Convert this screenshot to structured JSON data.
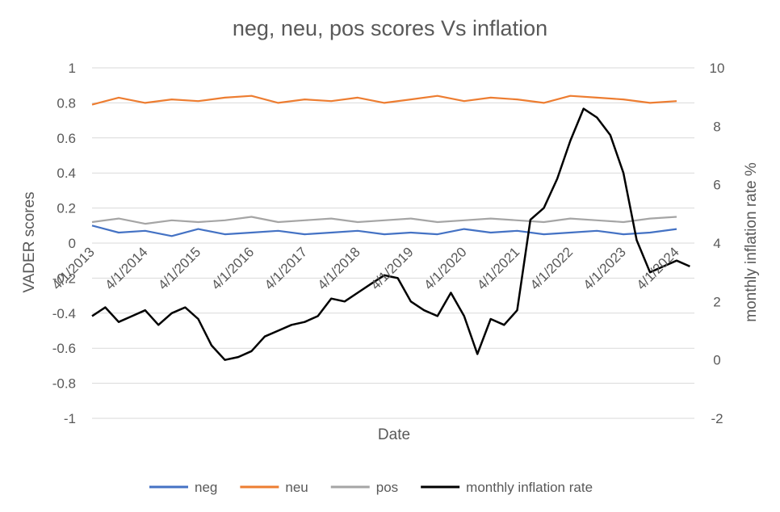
{
  "chart_data": {
    "type": "line",
    "title": "neg, neu, pos scores Vs inflation",
    "xlabel": "Date",
    "ylabel": "VADER scores",
    "y2label": "monthly inflation rate %",
    "ylim": [
      -1,
      1
    ],
    "y2lim": [
      -2,
      10
    ],
    "y_ticks": [
      "1",
      "0.8",
      "0.6",
      "0.4",
      "0.2",
      "0",
      "-0.2",
      "-0.4",
      "-0.6",
      "-0.8",
      "-1"
    ],
    "y2_ticks": [
      "10",
      "8",
      "6",
      "4",
      "2",
      "0",
      "-2"
    ],
    "x_date_labels": [
      "4/1/2013",
      "4/1/2014",
      "4/1/2015",
      "4/1/2016",
      "4/1/2017",
      "4/1/2018",
      "4/1/2019",
      "4/1/2020",
      "4/1/2021",
      "4/1/2022",
      "4/1/2023",
      "4/1/2024"
    ],
    "grid": true,
    "legend_position": "bottom",
    "colors": {
      "neg": "#4472c4",
      "neu": "#ed7d31",
      "pos": "#a5a5a5",
      "inflation": "#000000"
    },
    "series": [
      {
        "name": "neg",
        "axis": "left",
        "x": [
          "2013-04",
          "2013-10",
          "2014-04",
          "2014-10",
          "2015-04",
          "2015-10",
          "2016-04",
          "2016-10",
          "2017-04",
          "2017-10",
          "2018-04",
          "2018-10",
          "2019-04",
          "2019-10",
          "2020-04",
          "2020-10",
          "2021-04",
          "2021-10",
          "2022-04",
          "2022-10",
          "2023-04",
          "2023-10",
          "2024-04"
        ],
        "y": [
          0.1,
          0.06,
          0.07,
          0.04,
          0.08,
          0.05,
          0.06,
          0.07,
          0.05,
          0.06,
          0.07,
          0.05,
          0.06,
          0.05,
          0.08,
          0.06,
          0.07,
          0.05,
          0.06,
          0.07,
          0.05,
          0.06,
          0.08
        ]
      },
      {
        "name": "neu",
        "axis": "left",
        "x": [
          "2013-04",
          "2013-10",
          "2014-04",
          "2014-10",
          "2015-04",
          "2015-10",
          "2016-04",
          "2016-10",
          "2017-04",
          "2017-10",
          "2018-04",
          "2018-10",
          "2019-04",
          "2019-10",
          "2020-04",
          "2020-10",
          "2021-04",
          "2021-10",
          "2022-04",
          "2022-10",
          "2023-04",
          "2023-10",
          "2024-04"
        ],
        "y": [
          0.79,
          0.83,
          0.8,
          0.82,
          0.81,
          0.83,
          0.84,
          0.8,
          0.82,
          0.81,
          0.83,
          0.8,
          0.82,
          0.84,
          0.81,
          0.83,
          0.82,
          0.8,
          0.84,
          0.83,
          0.82,
          0.8,
          0.81
        ]
      },
      {
        "name": "pos",
        "axis": "left",
        "x": [
          "2013-04",
          "2013-10",
          "2014-04",
          "2014-10",
          "2015-04",
          "2015-10",
          "2016-04",
          "2016-10",
          "2017-04",
          "2017-10",
          "2018-04",
          "2018-10",
          "2019-04",
          "2019-10",
          "2020-04",
          "2020-10",
          "2021-04",
          "2021-10",
          "2022-04",
          "2022-10",
          "2023-04",
          "2023-10",
          "2024-04"
        ],
        "y": [
          0.12,
          0.14,
          0.11,
          0.13,
          0.12,
          0.13,
          0.15,
          0.12,
          0.13,
          0.14,
          0.12,
          0.13,
          0.14,
          0.12,
          0.13,
          0.14,
          0.13,
          0.12,
          0.14,
          0.13,
          0.12,
          0.14,
          0.15
        ]
      },
      {
        "name": "monthly inflation rate",
        "axis": "right",
        "x": [
          "2013-04",
          "2013-07",
          "2013-10",
          "2014-01",
          "2014-04",
          "2014-07",
          "2014-10",
          "2015-01",
          "2015-04",
          "2015-07",
          "2015-10",
          "2016-01",
          "2016-04",
          "2016-07",
          "2016-10",
          "2017-01",
          "2017-04",
          "2017-07",
          "2017-10",
          "2018-01",
          "2018-04",
          "2018-07",
          "2018-10",
          "2019-01",
          "2019-04",
          "2019-07",
          "2019-10",
          "2020-01",
          "2020-04",
          "2020-07",
          "2020-10",
          "2021-01",
          "2021-04",
          "2021-07",
          "2021-10",
          "2022-01",
          "2022-04",
          "2022-07",
          "2022-10",
          "2023-01",
          "2023-04",
          "2023-07",
          "2023-10",
          "2024-01",
          "2024-04",
          "2024-07"
        ],
        "y": [
          1.5,
          1.8,
          1.3,
          1.5,
          1.7,
          1.2,
          1.6,
          1.8,
          1.4,
          0.5,
          0.0,
          0.1,
          0.3,
          0.8,
          1.0,
          1.2,
          1.3,
          1.5,
          2.1,
          2.0,
          2.3,
          2.6,
          2.9,
          2.8,
          2.0,
          1.7,
          1.5,
          2.3,
          1.5,
          0.2,
          1.4,
          1.2,
          1.7,
          4.8,
          5.2,
          6.2,
          7.5,
          8.6,
          8.3,
          7.7,
          6.4,
          4.1,
          3.0,
          3.2,
          3.4,
          3.2
        ]
      }
    ]
  }
}
